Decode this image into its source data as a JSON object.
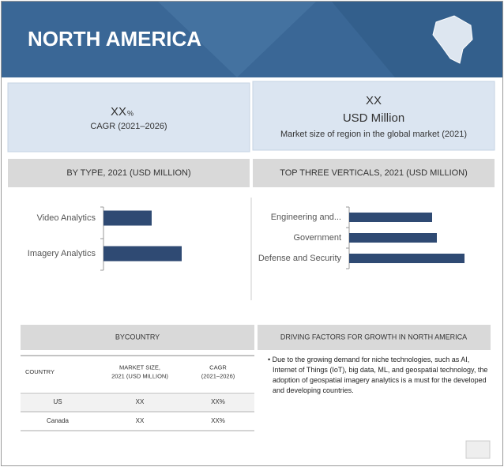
{
  "header": {
    "title": "NORTH AMERICA"
  },
  "kpis": [
    {
      "value": "XX",
      "unit": "%",
      "label": "CAGR (2021–2026)"
    },
    {
      "value": "XX",
      "unit": "USD Million",
      "label": "Market size of region in the global market (2021)"
    }
  ],
  "by_type": {
    "title": "BY TYPE, 2021 (USD MILLION)",
    "categories": [
      "Video Analytics",
      "Imagery Analytics"
    ],
    "values": [
      61,
      99
    ],
    "xlim": [
      0,
      180
    ],
    "color": "#2f4a73"
  },
  "verticals": {
    "title": "TOP THREE VERTICALS, 2021 (USD MILLION)",
    "categories": [
      "Engineering and...",
      "Government",
      "Defense and Security"
    ],
    "values": [
      105,
      111,
      146
    ],
    "xlim": [
      0,
      180
    ],
    "color": "#2f4a73"
  },
  "by_country": {
    "title": "BYCOUNTRY",
    "columns": [
      [
        "COUNTRY"
      ],
      [
        "MARKET SIZE,",
        "2021 (USD MILLION)"
      ],
      [
        "CAGR",
        "(2021–2026)"
      ]
    ],
    "rows": [
      [
        "US",
        "XX",
        "XX%"
      ],
      [
        "Canada",
        "XX",
        "XX%"
      ]
    ]
  },
  "drivers": {
    "title": "DRIVING FACTORS FOR GROWTH IN NORTH AMERICA",
    "bullets": [
      "Due to the growing demand for niche technologies, such as AI, Internet of Things (IoT), big data, ML, and geospatial technology, the adoption of geospatial imagery analytics is a must for the developed and developing countries."
    ]
  }
}
